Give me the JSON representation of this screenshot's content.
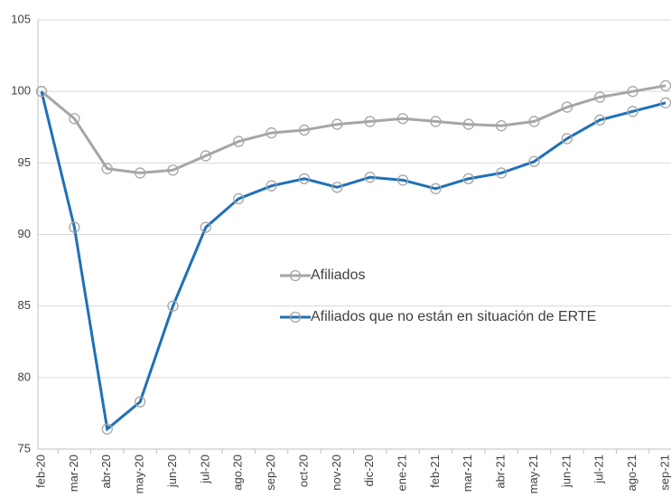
{
  "chart_data": {
    "type": "line",
    "categories": [
      "feb-20",
      "mar-20",
      "abr-20",
      "may-20",
      "jun-20",
      "jul-20",
      "ago.20",
      "sep-20",
      "oct-20",
      "nov-20",
      "dic-20",
      "ene-21",
      "feb-21",
      "mar-21",
      "abr-21",
      "may-21",
      "jun-21",
      "jul-21",
      "ago-21",
      "sep-21"
    ],
    "series": [
      {
        "name": "Afiliados",
        "color": "#a6a6a6",
        "values": [
          100,
          98.1,
          94.6,
          94.3,
          94.5,
          95.5,
          96.5,
          97.1,
          97.3,
          97.7,
          97.9,
          98.1,
          97.9,
          97.7,
          97.6,
          97.9,
          98.9,
          99.6,
          100.0,
          100.4
        ]
      },
      {
        "name": "Afiliados que no están en situación de ERTE",
        "color": "#1f70b8",
        "values": [
          100,
          90.5,
          76.4,
          78.3,
          85.0,
          90.5,
          92.5,
          93.4,
          93.9,
          93.3,
          94.0,
          93.8,
          93.2,
          93.9,
          94.3,
          95.1,
          96.7,
          98.0,
          98.6,
          99.2
        ]
      }
    ],
    "ylim": [
      75,
      105
    ],
    "yticks": [
      75,
      80,
      85,
      90,
      95,
      100,
      105
    ],
    "grid": true,
    "legend": "center"
  }
}
